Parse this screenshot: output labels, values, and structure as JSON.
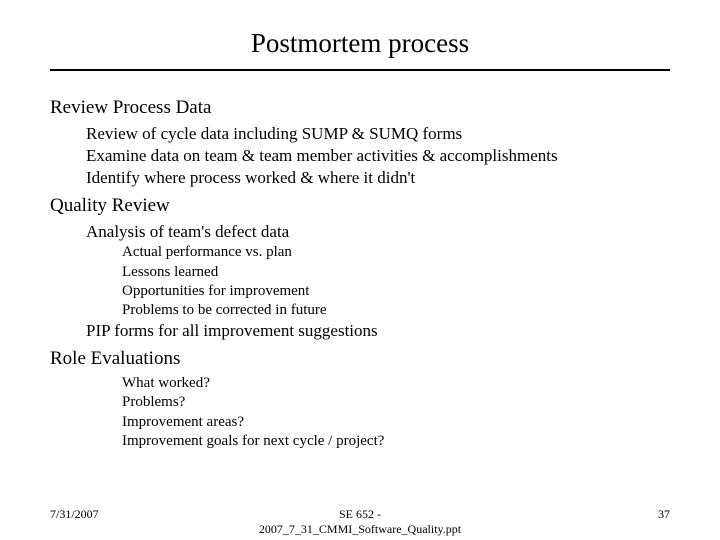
{
  "title": "Postmortem process",
  "sections": [
    {
      "heading": "Review Process Data",
      "items": [
        "Review of cycle data including SUMP & SUMQ forms",
        "Examine data on team & team member activities & accomplishments",
        "Identify where process worked & where it didn't"
      ]
    },
    {
      "heading": "Quality Review",
      "items": [
        "Analysis of team's defect data"
      ],
      "subitems": [
        "Actual performance vs. plan",
        "Lessons learned",
        "Opportunities for improvement",
        "Problems to be corrected in future"
      ],
      "items_after": [
        "PIP forms for all improvement suggestions"
      ]
    },
    {
      "heading": "Role Evaluations",
      "subitems_direct": [
        "What worked?",
        "Problems?",
        "Improvement areas?",
        "Improvement goals for next cycle / project?"
      ]
    }
  ],
  "footer": {
    "date": "7/31/2007",
    "center_line1": "SE 652 -",
    "center_line2": "2007_7_31_CMMI_Software_Quality.ppt",
    "page": "37"
  },
  "style": {
    "background": "#ffffff",
    "text_color": "#000000",
    "rule_color": "#000000",
    "title_fontsize": 27,
    "section_fontsize": 19,
    "lvl2_fontsize": 17,
    "lvl3_fontsize": 15,
    "footer_fontsize": 12
  }
}
